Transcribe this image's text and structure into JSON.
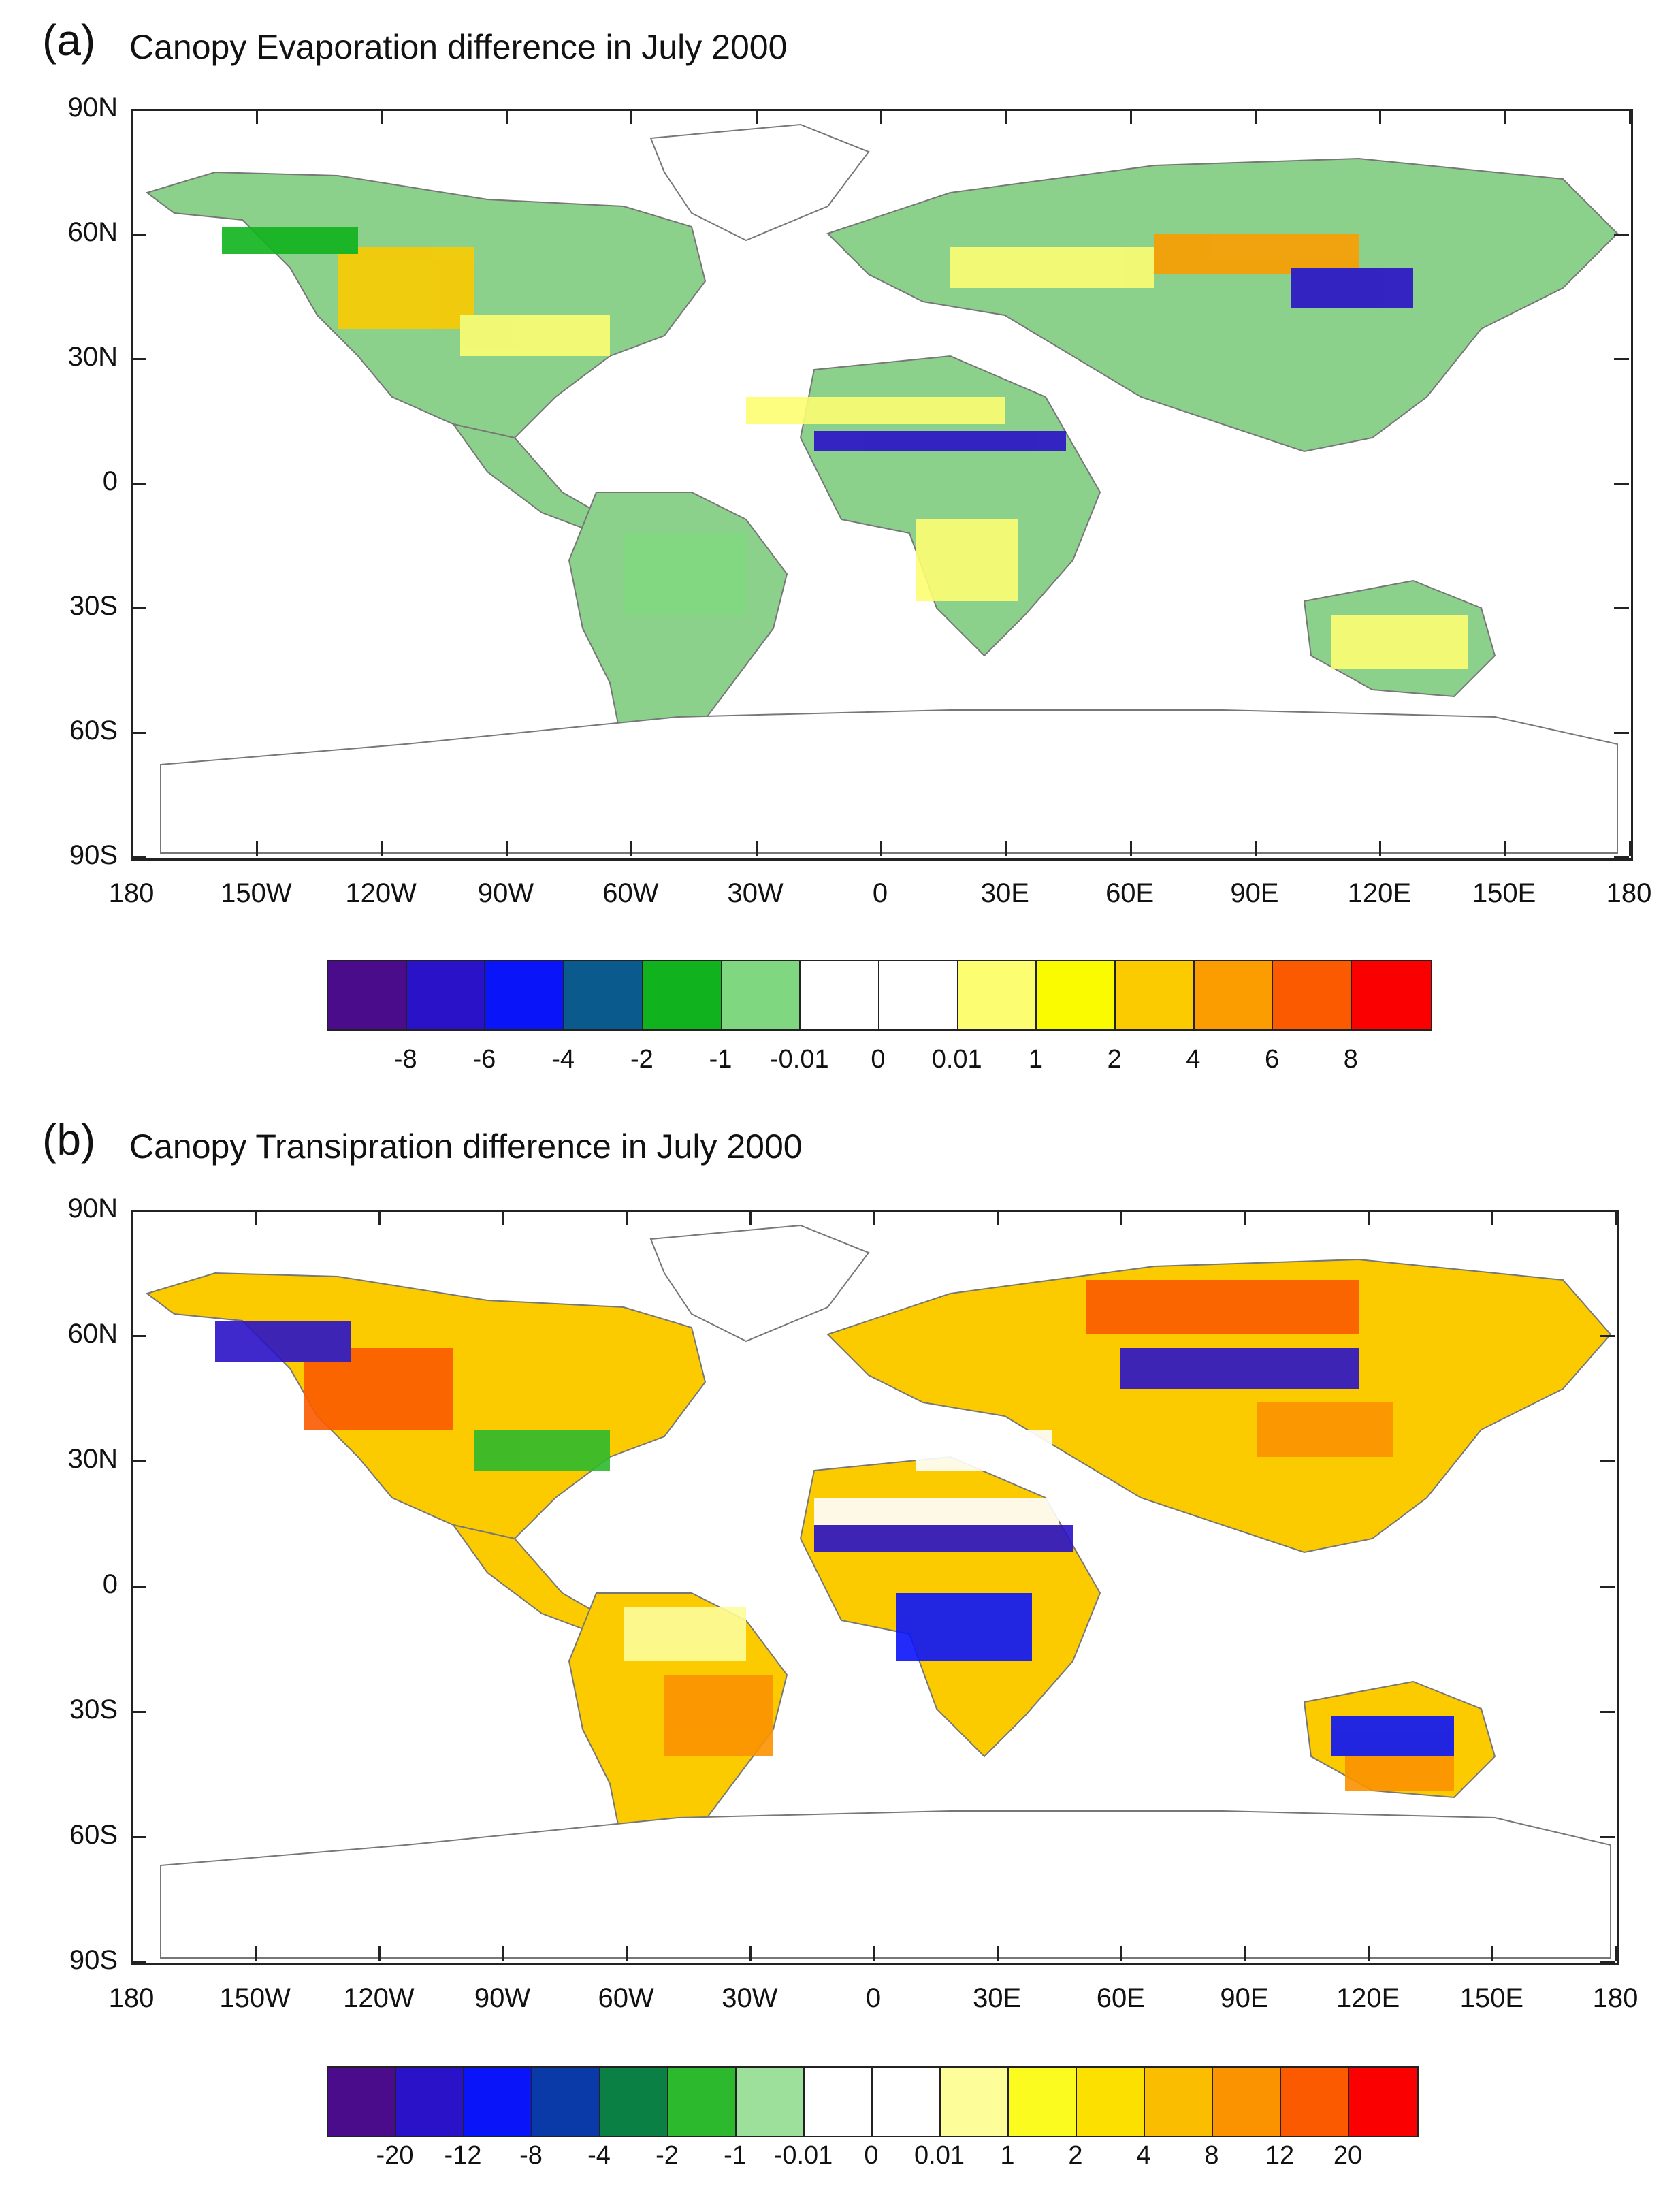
{
  "panels": [
    {
      "label": "(a)",
      "title": "Canopy Evaporation difference in July 2000",
      "lat_labels": [
        "90N",
        "60N",
        "30N",
        "0",
        "30S",
        "60S",
        "90S"
      ],
      "lon_labels": [
        "180",
        "150W",
        "120W",
        "90W",
        "60W",
        "30W",
        "0",
        "30E",
        "60E",
        "90E",
        "120E",
        "150E",
        "180"
      ],
      "legend_colors": [
        "#4b0c8c",
        "#2a12c8",
        "#0a14f8",
        "#0a5a8e",
        "#10b31d",
        "#7fd87f",
        "#ffffff",
        "#ffffff",
        "#fdfd72",
        "#fbfb00",
        "#fbcb00",
        "#fb9d00",
        "#fb5a00",
        "#fb0000"
      ],
      "legend_labels": [
        "-8",
        "-6",
        "-4",
        "-2",
        "-1",
        "-0.01",
        "0",
        "0.01",
        "1",
        "2",
        "4",
        "6",
        "8"
      ]
    },
    {
      "label": "(b)",
      "title": "Canopy Transipration difference in July 2000",
      "lat_labels": [
        "90N",
        "60N",
        "30N",
        "0",
        "30S",
        "60S",
        "90S"
      ],
      "lon_labels": [
        "180",
        "150W",
        "120W",
        "90W",
        "60W",
        "30W",
        "0",
        "30E",
        "60E",
        "90E",
        "120E",
        "150E",
        "180"
      ],
      "legend_colors": [
        "#4b0c8c",
        "#2a12c8",
        "#0a14f8",
        "#0a3aa8",
        "#0a8044",
        "#2db92d",
        "#9ce09c",
        "#ffffff",
        "#ffffff",
        "#fdfd9a",
        "#fbfb20",
        "#fbe000",
        "#fbbd00",
        "#fb9200",
        "#fb5a00",
        "#fb0000"
      ],
      "legend_labels": [
        "-20",
        "-12",
        "-8",
        "-4",
        "-2",
        "-1",
        "-0.01",
        "0",
        "0.01",
        "1",
        "2",
        "4",
        "8",
        "12",
        "20"
      ]
    }
  ]
}
